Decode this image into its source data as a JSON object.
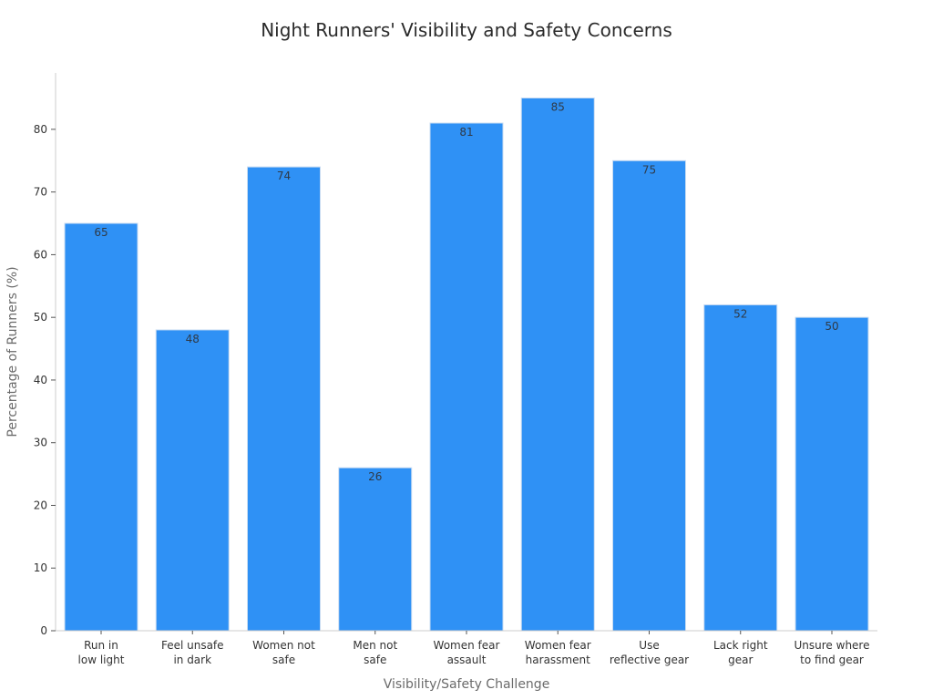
{
  "chart_data": {
    "type": "bar",
    "title": "Night Runners' Visibility and Safety Concerns",
    "xlabel": "Visibility/Safety Challenge",
    "ylabel": "Percentage of Runners (%)",
    "categories": [
      [
        "Run in",
        "low light"
      ],
      [
        "Feel unsafe",
        "in dark"
      ],
      [
        "Women not",
        "safe"
      ],
      [
        "Men not",
        "safe"
      ],
      [
        "Women fear",
        "assault"
      ],
      [
        "Women fear",
        "harassment"
      ],
      [
        "Use",
        "reflective gear"
      ],
      [
        "Lack right",
        "gear"
      ],
      [
        "Unsure where",
        "to find gear"
      ]
    ],
    "values": [
      65,
      48,
      74,
      26,
      81,
      85,
      75,
      52,
      50
    ],
    "ylim": [
      0,
      89
    ],
    "yticks": [
      0,
      10,
      20,
      30,
      40,
      50,
      60,
      70,
      80
    ],
    "grid": false,
    "bar_color": "#2f91f5"
  }
}
